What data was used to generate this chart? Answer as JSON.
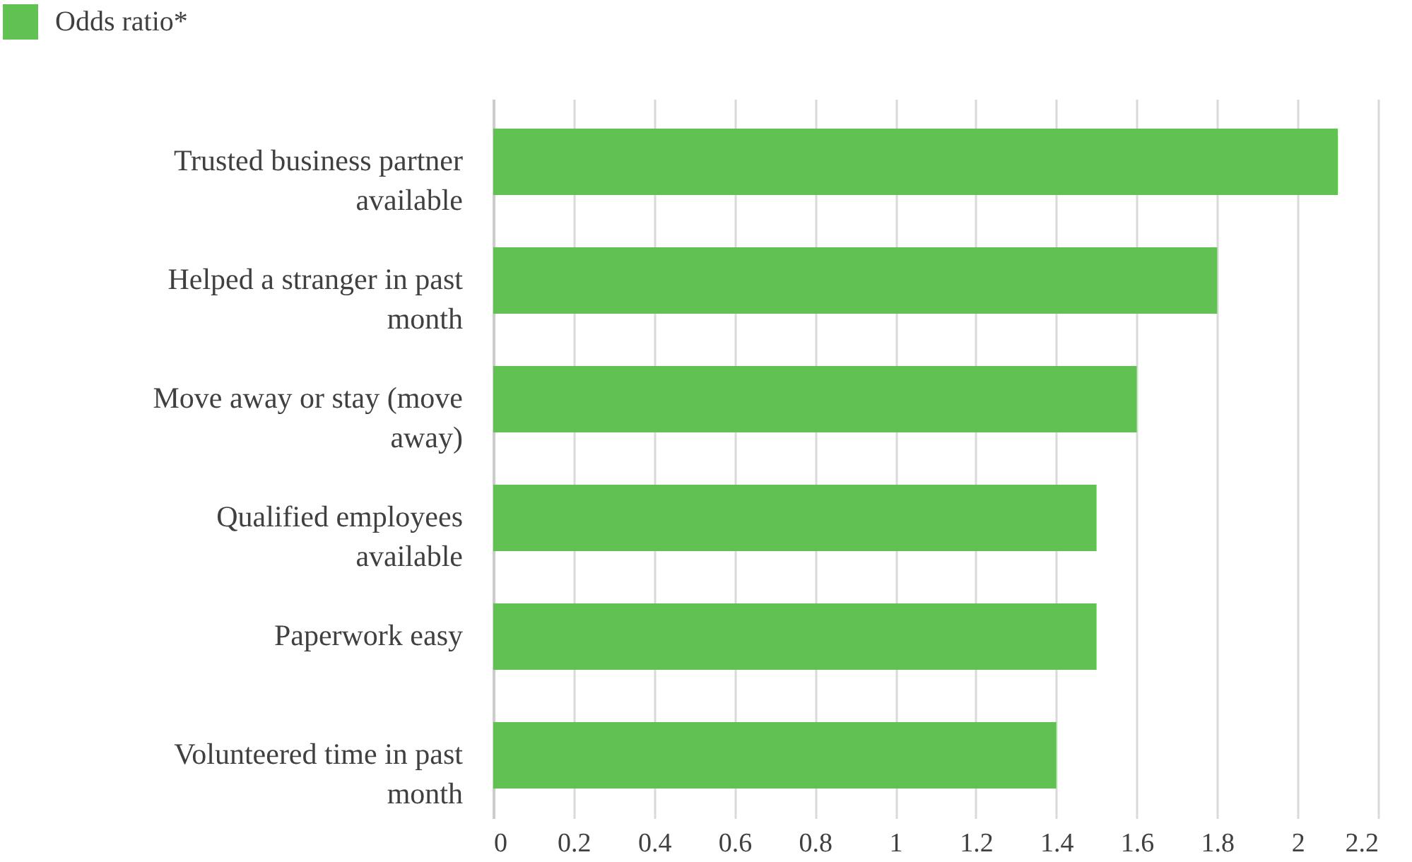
{
  "chart_data": {
    "type": "bar",
    "orientation": "horizontal",
    "categories": [
      "Trusted business partner available",
      "Helped a stranger in past month",
      "Move away or stay (move away)",
      "Qualified employees available",
      "Paperwork easy",
      "Volunteered time in past month"
    ],
    "series": [
      {
        "name": "Odds ratio*",
        "color": "#61c153",
        "values": [
          2.1,
          1.8,
          1.6,
          1.5,
          1.5,
          1.4
        ]
      }
    ],
    "xlim": [
      0,
      2.2
    ],
    "xticks": [
      0,
      0.2,
      0.4,
      0.6,
      0.8,
      1,
      1.2,
      1.4,
      1.6,
      1.8,
      2,
      2.2
    ],
    "grid": "x",
    "legend": "top left"
  }
}
